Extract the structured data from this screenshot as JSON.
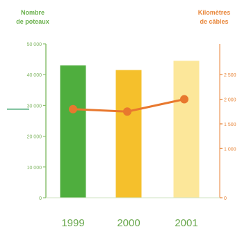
{
  "chart_data": {
    "type": "bar",
    "title": "",
    "xlabel": "",
    "categories": [
      "1999",
      "2000",
      "2001"
    ],
    "left_axis": {
      "label_lines": [
        "Nombre",
        "de poteaux"
      ],
      "ylim": [
        0,
        50000
      ],
      "ticks": [
        0,
        10000,
        20000,
        30000,
        40000,
        50000
      ],
      "tick_labels": [
        "0",
        "10 000",
        "20 000",
        "30 000",
        "40 000",
        "50 000"
      ]
    },
    "right_axis": {
      "label_lines": [
        "Kilomètres",
        "de câbles"
      ],
      "ylim": [
        0,
        3125
      ],
      "ticks": [
        0,
        1000,
        1500,
        2000,
        2500
      ],
      "tick_labels": [
        "0",
        "1 000",
        "1 500",
        "2 000",
        "2 500"
      ]
    },
    "series": [
      {
        "type": "bar",
        "axis": "left",
        "values": [
          43000,
          41500,
          44500
        ]
      },
      {
        "type": "line",
        "axis": "right",
        "values": [
          1800,
          1750,
          2000
        ]
      }
    ],
    "grid": false,
    "colors": {
      "bars": [
        "#4fae3e",
        "#f5c02c",
        "#fce79a"
      ],
      "line": "#e8782e",
      "left_axis": "#8cc070",
      "right_axis": "#e8863a",
      "year_labels": "#6aa84f"
    }
  }
}
